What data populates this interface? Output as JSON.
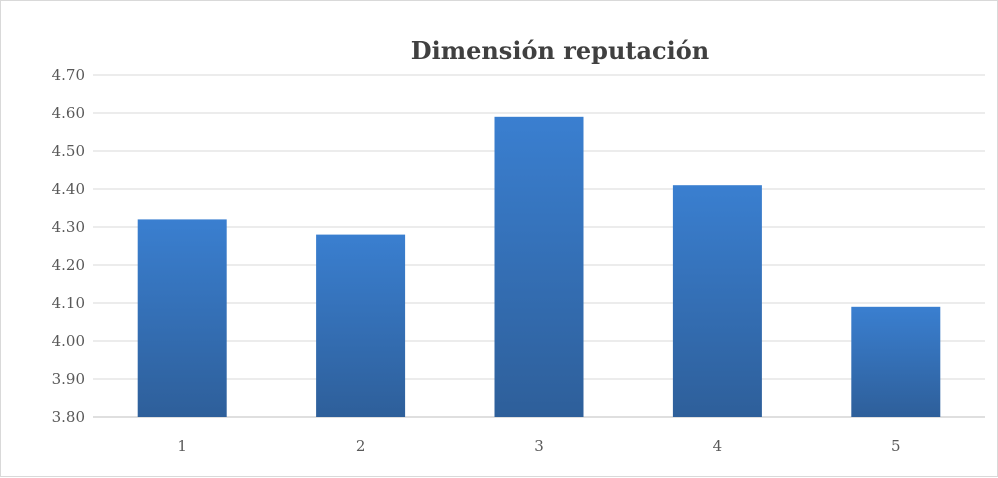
{
  "chart_data": {
    "type": "bar",
    "title": "Dimensión reputación",
    "xlabel": "",
    "ylabel": "",
    "categories": [
      "1",
      "2",
      "3",
      "4",
      "5"
    ],
    "values": [
      4.32,
      4.28,
      4.59,
      4.41,
      4.09
    ],
    "ylim": [
      3.8,
      4.7
    ],
    "yticks": [
      3.8,
      3.9,
      4.0,
      4.1,
      4.2,
      4.3,
      4.4,
      4.5,
      4.6,
      4.7
    ],
    "ytick_labels": [
      "3.80",
      "3.90",
      "4.00",
      "4.10",
      "4.20",
      "4.30",
      "4.40",
      "4.50",
      "4.60",
      "4.70"
    ],
    "grid": true,
    "legend": "none",
    "colors": {
      "bar_top": "#3a7fd0",
      "bar_bottom": "#2e5f9a",
      "grid": "#d9d9d9",
      "axis": "#bfbfbf",
      "text": "#595959",
      "title": "#404040"
    }
  }
}
